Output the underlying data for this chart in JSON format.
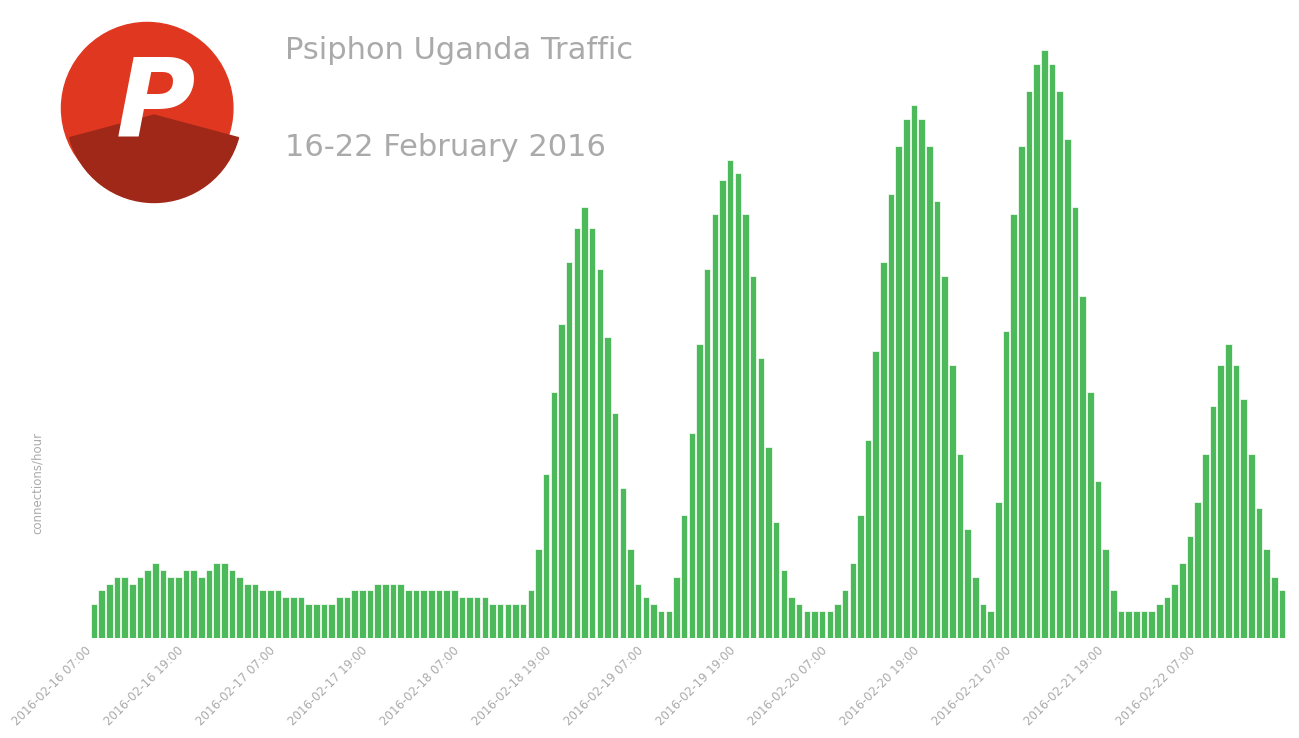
{
  "title_line1": "Psiphon Uganda Traffic",
  "title_line2": "16-22 February 2016",
  "ylabel": "connections/hour",
  "bar_color": "#4cba5a",
  "bar_edge_color": "#ffffff",
  "background_color": "#ffffff",
  "title_color": "#aaaaaa",
  "ylabel_color": "#aaaaaa",
  "tick_color": "#aaaaaa",
  "xtick_labels": [
    "2016-02-16 07:00",
    "2016-02-16 19:00",
    "2016-02-17 07:00",
    "2016-02-17 19:00",
    "2016-02-18 07:00",
    "2016-02-18 19:00",
    "2016-02-19 07:00",
    "2016-02-19 19:00",
    "2016-02-20 07:00",
    "2016-02-20 19:00",
    "2016-02-21 07:00",
    "2016-02-21 19:00",
    "2016-02-22 07:00"
  ],
  "values": [
    5,
    7,
    8,
    9,
    9,
    8,
    9,
    10,
    11,
    10,
    9,
    9,
    10,
    10,
    9,
    10,
    11,
    11,
    10,
    9,
    8,
    8,
    7,
    7,
    7,
    6,
    6,
    6,
    5,
    5,
    5,
    5,
    6,
    6,
    7,
    7,
    7,
    8,
    8,
    8,
    8,
    7,
    7,
    7,
    7,
    7,
    7,
    7,
    6,
    6,
    6,
    6,
    5,
    5,
    5,
    5,
    5,
    7,
    13,
    24,
    36,
    46,
    55,
    60,
    63,
    60,
    54,
    44,
    33,
    22,
    13,
    8,
    6,
    5,
    4,
    4,
    9,
    18,
    30,
    43,
    54,
    62,
    67,
    70,
    68,
    62,
    53,
    41,
    28,
    17,
    10,
    6,
    5,
    4,
    4,
    4,
    4,
    5,
    7,
    11,
    18,
    29,
    42,
    55,
    65,
    72,
    76,
    78,
    76,
    72,
    64,
    53,
    40,
    27,
    16,
    9,
    5,
    4,
    20,
    45,
    62,
    72,
    80,
    84,
    86,
    84,
    80,
    73,
    63,
    50,
    36,
    23,
    13,
    7,
    4,
    4,
    4,
    4,
    4,
    5,
    6,
    8,
    11,
    15,
    20,
    27,
    34,
    40,
    43,
    40,
    35,
    27,
    19,
    13,
    9,
    7
  ],
  "logo_circle_color": "#e03820",
  "logo_shadow_color": "#a02818"
}
